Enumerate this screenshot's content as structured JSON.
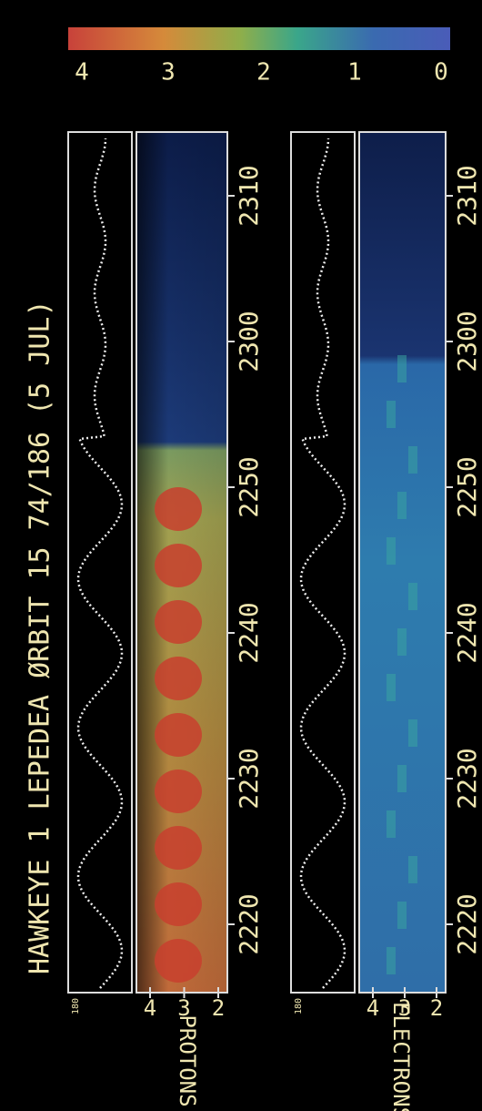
{
  "title": "HAWKEYE 1  LEPEDEA  ØRBIT 15  74/186 (5 JUL)",
  "colorbar": {
    "ticks": [
      "4",
      "3",
      "2",
      "1",
      "0"
    ]
  },
  "panels": [
    {
      "label": "PROTONS",
      "scale_label": "180",
      "y_ticks": [
        "4",
        "3",
        "2"
      ],
      "x_ticks": [
        "2220",
        "2230",
        "2240",
        "2250",
        "2300",
        "2310"
      ]
    },
    {
      "label": "ELECTRONS",
      "scale_label": "180",
      "y_ticks": [
        "4",
        "3",
        "2"
      ],
      "x_ticks": [
        "2220",
        "2230",
        "2240",
        "2250",
        "2300",
        "2310"
      ]
    }
  ]
}
